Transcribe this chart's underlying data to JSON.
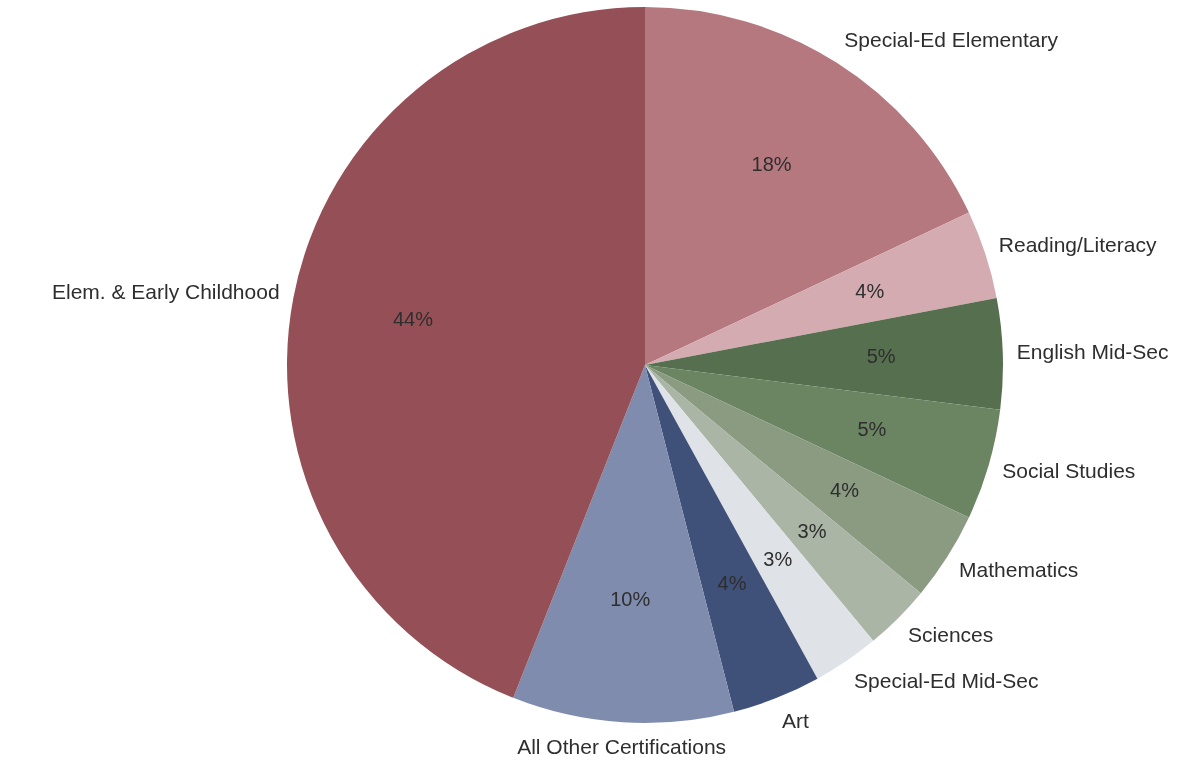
{
  "chart_data": {
    "type": "pie",
    "categories": [
      "Special-Ed Elementary",
      "Reading/Literacy",
      "English Mid-Sec",
      "Social Studies",
      "Mathematics",
      "Sciences",
      "Special-Ed Mid-Sec",
      "Art",
      "All Other Certifications",
      "Elem. & Early Childhood"
    ],
    "values": [
      18,
      4,
      5,
      5,
      4,
      3,
      3,
      4,
      10,
      44
    ],
    "value_labels": [
      "18%",
      "4%",
      "5%",
      "5%",
      "4%",
      "3%",
      "3%",
      "4%",
      "10%",
      "44%"
    ],
    "colors": [
      "#b5787f",
      "#d5abb2",
      "#56704f",
      "#6b8563",
      "#8a9b82",
      "#aab5a6",
      "#dfe2e6",
      "#3f5079",
      "#7f8cae",
      "#955057"
    ]
  }
}
